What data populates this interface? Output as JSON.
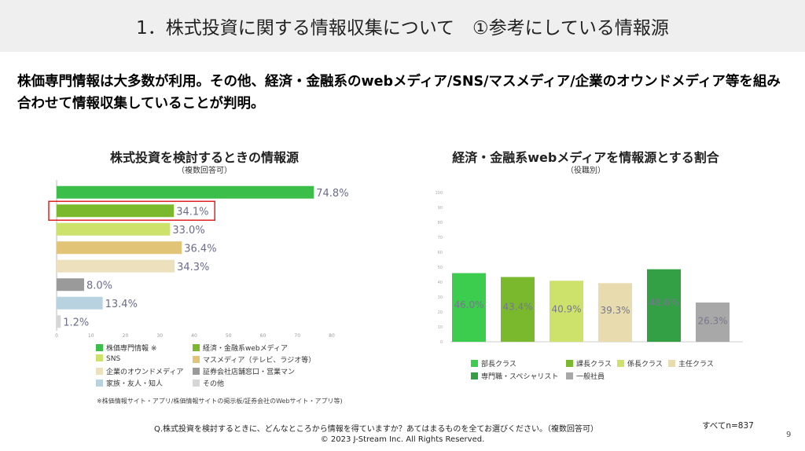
{
  "title": "1．株式投資に関する情報収集について　①参考にしている情報源",
  "headline": "株価専門情報は大多数が利用。その他、経済・金融系のwebメディア/SNS/マスメディア/企業のオウンドメディア等を組み合わせて情報収集していることが判明。",
  "chart_data": [
    {
      "type": "bar",
      "orientation": "horizontal",
      "title": "株式投資を検討するときの情報源",
      "subtitle": "（複数回答可）",
      "categories": [
        "株価専門情報 ※",
        "経済・金融系webメディア",
        "SNS",
        "マスメディア（テレビ、ラジオ等）",
        "企業のオウンドメディア",
        "証券会社店舗窓口・営業マン",
        "家族・友人・知人",
        "その他"
      ],
      "values": [
        74.8,
        34.1,
        33.0,
        36.4,
        34.3,
        8.0,
        13.4,
        1.2
      ],
      "labels": [
        "74.8%",
        "34.1%",
        "33.0%",
        "36.4%",
        "34.3%",
        "8.0%",
        "13.4%",
        "1.2%"
      ],
      "colors": [
        "#3cbf4a",
        "#7ab82e",
        "#cde26a",
        "#e2c477",
        "#ede0bd",
        "#9a9a9a",
        "#b8d3df",
        "#d6d6d6"
      ],
      "xlim": [
        0,
        80
      ],
      "xticks": [
        "0",
        "10",
        "20",
        "30",
        "40",
        "50",
        "60",
        "70",
        "80"
      ],
      "highlight_index": 1,
      "highlight_color": "#e02222",
      "legend": "bottom",
      "note": "※株価情報サイト・アプリ/株価情報サイトの掲示板/証券会社のWebサイト・アプリ等"
    },
    {
      "type": "bar",
      "title": "経済・金融系webメディアを情報源とする割合",
      "subtitle": "（役職別）",
      "categories": [
        "部長クラス",
        "課長クラス",
        "係長クラス",
        "主任クラス",
        "専門職・スペシャリスト",
        "一般社員"
      ],
      "values": [
        46.0,
        43.4,
        40.9,
        39.3,
        48.6,
        26.3
      ],
      "labels": [
        "46.0%",
        "43.4%",
        "40.9%",
        "39.3%",
        "48.6%",
        "26.3%"
      ],
      "colors": [
        "#3ccc4e",
        "#7ab82e",
        "#cde26a",
        "#e8dcae",
        "#34a046",
        "#a8a8a8"
      ],
      "ylim": [
        0,
        100
      ],
      "yticks": [
        "0",
        "10",
        "20",
        "30",
        "40",
        "50",
        "60",
        "70",
        "80",
        "90",
        "100"
      ],
      "legend": "bottom"
    }
  ],
  "footnote": "※株価情報サイト・アプリ/株価情報サイトの掲示板/証券会社のWebサイト・アプリ等)",
  "question": "Q.株式投資を検討するときに、どんなところから情報を得ていますか？あてはまるものを全てお選びください。（複数回答可）",
  "sample": "すべてn=837",
  "copyright": "© 2023 J-Stream Inc. All Rights Reserved.",
  "page_number": "9"
}
